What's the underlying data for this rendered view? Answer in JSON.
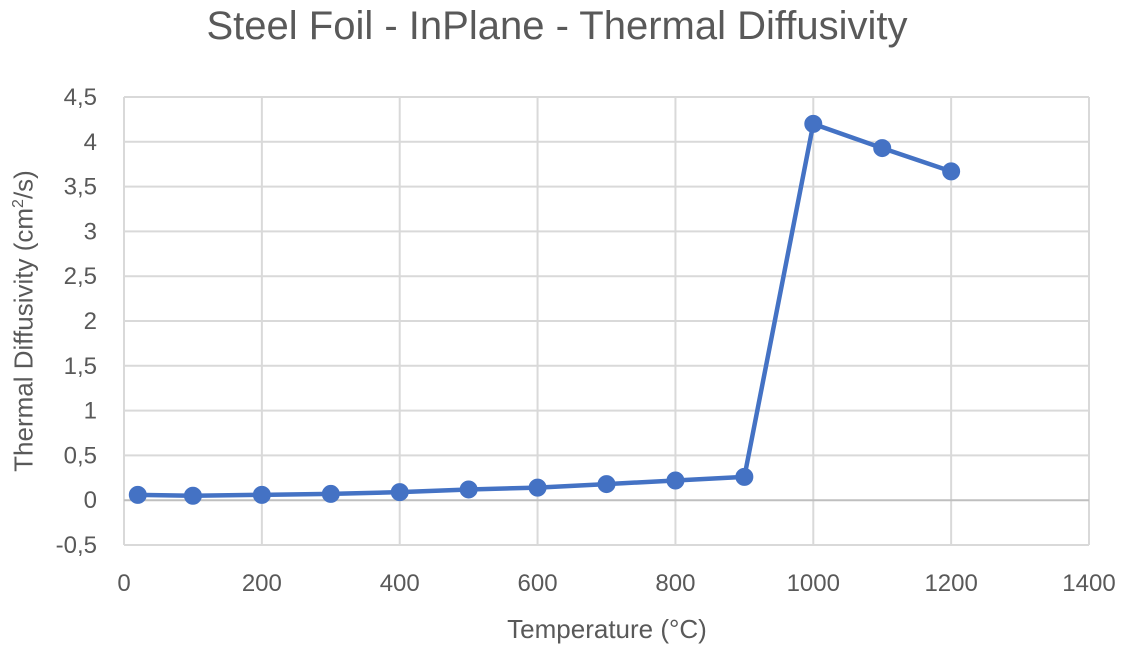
{
  "chart_data": {
    "type": "line",
    "title": "Steel Foil - InPlane - Thermal Diffusivity",
    "xlabel": "Temperature (°C)",
    "ylabel": "Thermal Diffusivity (cm²/s)",
    "xlim": [
      0,
      1400
    ],
    "ylim": [
      -0.5,
      4.5
    ],
    "x_ticks": [
      0,
      200,
      400,
      600,
      800,
      1000,
      1200,
      1400
    ],
    "x_tick_labels": [
      "0",
      "200",
      "400",
      "600",
      "800",
      "1000",
      "1200",
      "1400"
    ],
    "y_ticks": [
      -0.5,
      0,
      0.5,
      1,
      1.5,
      2,
      2.5,
      3,
      3.5,
      4,
      4.5
    ],
    "y_tick_labels": [
      "-0,5",
      "0",
      "0,5",
      "1",
      "1,5",
      "2",
      "2,5",
      "3",
      "3,5",
      "4",
      "4,5"
    ],
    "grid": true,
    "legend": "none",
    "series": [
      {
        "color": "#4472C4",
        "x": [
          20,
          100,
          200,
          300,
          400,
          500,
          600,
          700,
          800,
          900,
          1000,
          1100,
          1200
        ],
        "y": [
          0.06,
          0.05,
          0.06,
          0.07,
          0.09,
          0.12,
          0.14,
          0.18,
          0.22,
          0.26,
          4.2,
          3.93,
          3.67
        ]
      }
    ]
  }
}
